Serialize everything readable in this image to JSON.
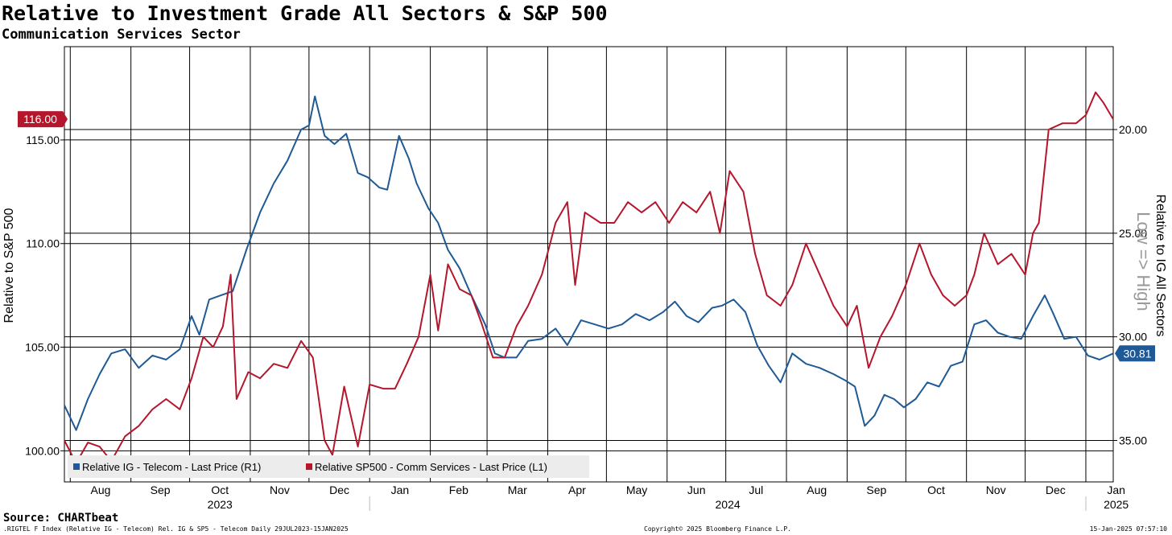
{
  "title": "Relative to Investment Grade All Sectors & S&P 500",
  "subtitle": "Communication Services Sector",
  "source": "Source: CHARTbeat",
  "footer": {
    "left": ".RIGTEL F Index (Relative IG - Telecom) Rel. IG & SP5 - Telecom  Daily 29JUL2023-15JAN2025",
    "center": "Copyright© 2025 Bloomberg Finance L.P.",
    "right": "15-Jan-2025 07:57:10"
  },
  "chart_data": {
    "type": "line",
    "x_axis": {
      "months": [
        "Aug",
        "Sep",
        "Oct",
        "Nov",
        "Dec",
        "Jan",
        "Feb",
        "Mar",
        "Apr",
        "May",
        "Jun",
        "Jul",
        "Aug",
        "Sep",
        "Oct",
        "Nov",
        "Dec",
        "Jan"
      ],
      "years": [
        "2023",
        "2024",
        "2025"
      ]
    },
    "left_axis": {
      "label": "Relative to S&P 500",
      "ticks": [
        "100.00",
        "105.00",
        "110.00",
        "115.00"
      ],
      "range": [
        98.5,
        119.5
      ]
    },
    "right_axis": {
      "label": "Relative to IG All Sectors",
      "ticks": [
        "20.00",
        "25.00",
        "30.00",
        "35.00"
      ],
      "range": [
        37.0,
        16.0
      ],
      "inverted": true,
      "annotation": "Low => High"
    },
    "grid": true,
    "legend": {
      "placement": "bottom-left"
    },
    "last_values": {
      "left": "116.00",
      "right": "30.81"
    },
    "series": [
      {
        "name": "Relative IG - Telecom - Last Price (R1)",
        "axis": "right",
        "color": "#1f5a96",
        "last_label": "30.81",
        "points": [
          [
            "2023-07-29",
            33.3
          ],
          [
            "2023-08-04",
            34.5
          ],
          [
            "2023-08-10",
            33.0
          ],
          [
            "2023-08-16",
            31.8
          ],
          [
            "2023-08-22",
            30.8
          ],
          [
            "2023-08-29",
            30.6
          ],
          [
            "2023-09-05",
            31.5
          ],
          [
            "2023-09-12",
            30.9
          ],
          [
            "2023-09-19",
            31.1
          ],
          [
            "2023-09-26",
            30.6
          ],
          [
            "2023-10-02",
            29.0
          ],
          [
            "2023-10-06",
            29.9
          ],
          [
            "2023-10-11",
            28.2
          ],
          [
            "2023-10-17",
            28.0
          ],
          [
            "2023-10-23",
            27.8
          ],
          [
            "2023-10-30",
            25.8
          ],
          [
            "2023-11-06",
            24.0
          ],
          [
            "2023-11-13",
            22.6
          ],
          [
            "2023-11-20",
            21.5
          ],
          [
            "2023-11-27",
            20.0
          ],
          [
            "2023-12-01",
            19.8
          ],
          [
            "2023-12-04",
            18.4
          ],
          [
            "2023-12-09",
            20.3
          ],
          [
            "2023-12-14",
            20.7
          ],
          [
            "2023-12-20",
            20.2
          ],
          [
            "2023-12-26",
            22.1
          ],
          [
            "2023-12-31",
            22.3
          ],
          [
            "2024-01-06",
            22.8
          ],
          [
            "2024-01-10",
            22.9
          ],
          [
            "2024-01-16",
            20.3
          ],
          [
            "2024-01-21",
            21.4
          ],
          [
            "2024-01-25",
            22.6
          ],
          [
            "2024-01-31",
            23.8
          ],
          [
            "2024-02-05",
            24.5
          ],
          [
            "2024-02-10",
            25.8
          ],
          [
            "2024-02-16",
            26.7
          ],
          [
            "2024-02-22",
            28.0
          ],
          [
            "2024-02-29",
            29.4
          ],
          [
            "2024-03-05",
            30.8
          ],
          [
            "2024-03-10",
            31.0
          ],
          [
            "2024-03-16",
            31.0
          ],
          [
            "2024-03-22",
            30.2
          ],
          [
            "2024-03-29",
            30.1
          ],
          [
            "2024-04-05",
            29.6
          ],
          [
            "2024-04-11",
            30.4
          ],
          [
            "2024-04-18",
            29.2
          ],
          [
            "2024-04-25",
            29.4
          ],
          [
            "2024-05-02",
            29.6
          ],
          [
            "2024-05-09",
            29.4
          ],
          [
            "2024-05-16",
            28.9
          ],
          [
            "2024-05-23",
            29.2
          ],
          [
            "2024-05-30",
            28.8
          ],
          [
            "2024-06-05",
            28.3
          ],
          [
            "2024-06-11",
            29.0
          ],
          [
            "2024-06-17",
            29.3
          ],
          [
            "2024-06-24",
            28.6
          ],
          [
            "2024-06-29",
            28.5
          ],
          [
            "2024-07-05",
            28.2
          ],
          [
            "2024-07-11",
            28.8
          ],
          [
            "2024-07-17",
            30.4
          ],
          [
            "2024-07-23",
            31.4
          ],
          [
            "2024-07-29",
            32.2
          ],
          [
            "2024-08-04",
            30.8
          ],
          [
            "2024-08-11",
            31.3
          ],
          [
            "2024-08-18",
            31.5
          ],
          [
            "2024-08-25",
            31.8
          ],
          [
            "2024-08-31",
            32.1
          ],
          [
            "2024-09-05",
            32.4
          ],
          [
            "2024-09-10",
            34.3
          ],
          [
            "2024-09-15",
            33.8
          ],
          [
            "2024-09-20",
            32.8
          ],
          [
            "2024-09-25",
            33.0
          ],
          [
            "2024-09-30",
            33.4
          ],
          [
            "2024-10-06",
            33.0
          ],
          [
            "2024-10-12",
            32.2
          ],
          [
            "2024-10-18",
            32.4
          ],
          [
            "2024-10-24",
            31.4
          ],
          [
            "2024-10-30",
            31.2
          ],
          [
            "2024-11-05",
            29.4
          ],
          [
            "2024-11-11",
            29.2
          ],
          [
            "2024-11-17",
            29.8
          ],
          [
            "2024-11-23",
            30.0
          ],
          [
            "2024-11-29",
            30.1
          ],
          [
            "2024-12-05",
            29.0
          ],
          [
            "2024-12-11",
            28.0
          ],
          [
            "2024-12-15",
            28.8
          ],
          [
            "2024-12-21",
            30.1
          ],
          [
            "2024-12-27",
            30.0
          ],
          [
            "2025-01-02",
            30.9
          ],
          [
            "2025-01-08",
            31.1
          ],
          [
            "2025-01-15",
            30.8
          ]
        ]
      },
      {
        "name": "Relative SP500 - Comm Services - Last Price (L1)",
        "axis": "left",
        "color": "#b5162b",
        "last_label": "116.00",
        "points": [
          [
            "2023-07-29",
            100.5
          ],
          [
            "2023-08-04",
            99.4
          ],
          [
            "2023-08-10",
            100.4
          ],
          [
            "2023-08-16",
            100.2
          ],
          [
            "2023-08-22",
            99.5
          ],
          [
            "2023-08-29",
            100.7
          ],
          [
            "2023-09-05",
            101.2
          ],
          [
            "2023-09-12",
            102.0
          ],
          [
            "2023-09-19",
            102.5
          ],
          [
            "2023-09-26",
            102.0
          ],
          [
            "2023-10-02",
            103.5
          ],
          [
            "2023-10-08",
            105.5
          ],
          [
            "2023-10-13",
            105.0
          ],
          [
            "2023-10-18",
            106.0
          ],
          [
            "2023-10-22",
            108.5
          ],
          [
            "2023-10-25",
            102.5
          ],
          [
            "2023-10-31",
            103.8
          ],
          [
            "2023-11-06",
            103.5
          ],
          [
            "2023-11-13",
            104.2
          ],
          [
            "2023-11-20",
            104.0
          ],
          [
            "2023-11-27",
            105.3
          ],
          [
            "2023-12-03",
            104.5
          ],
          [
            "2023-12-09",
            100.5
          ],
          [
            "2023-12-13",
            99.8
          ],
          [
            "2023-12-19",
            103.1
          ],
          [
            "2023-12-26",
            100.2
          ],
          [
            "2024-01-01",
            103.2
          ],
          [
            "2024-01-08",
            103.0
          ],
          [
            "2024-01-14",
            103.0
          ],
          [
            "2024-01-20",
            104.2
          ],
          [
            "2024-01-26",
            105.5
          ],
          [
            "2024-02-01",
            108.5
          ],
          [
            "2024-02-05",
            105.8
          ],
          [
            "2024-02-10",
            109.0
          ],
          [
            "2024-02-16",
            107.8
          ],
          [
            "2024-02-22",
            107.5
          ],
          [
            "2024-02-27",
            106.2
          ],
          [
            "2024-03-04",
            104.5
          ],
          [
            "2024-03-10",
            104.5
          ],
          [
            "2024-03-16",
            106.0
          ],
          [
            "2024-03-22",
            107.0
          ],
          [
            "2024-03-29",
            108.5
          ],
          [
            "2024-04-05",
            111.0
          ],
          [
            "2024-04-11",
            112.0
          ],
          [
            "2024-04-15",
            108.0
          ],
          [
            "2024-04-20",
            111.5
          ],
          [
            "2024-04-28",
            111.0
          ],
          [
            "2024-05-05",
            111.0
          ],
          [
            "2024-05-12",
            112.0
          ],
          [
            "2024-05-19",
            111.5
          ],
          [
            "2024-05-26",
            112.0
          ],
          [
            "2024-06-02",
            111.0
          ],
          [
            "2024-06-09",
            112.0
          ],
          [
            "2024-06-16",
            111.5
          ],
          [
            "2024-06-23",
            112.5
          ],
          [
            "2024-06-28",
            110.5
          ],
          [
            "2024-07-03",
            113.5
          ],
          [
            "2024-07-10",
            112.5
          ],
          [
            "2024-07-16",
            109.5
          ],
          [
            "2024-07-22",
            107.5
          ],
          [
            "2024-07-29",
            107.0
          ],
          [
            "2024-08-04",
            108.0
          ],
          [
            "2024-08-11",
            110.0
          ],
          [
            "2024-08-18",
            108.5
          ],
          [
            "2024-08-25",
            107.0
          ],
          [
            "2024-09-01",
            106.0
          ],
          [
            "2024-09-06",
            107.0
          ],
          [
            "2024-09-12",
            104.0
          ],
          [
            "2024-09-18",
            105.5
          ],
          [
            "2024-09-24",
            106.5
          ],
          [
            "2024-10-01",
            108.0
          ],
          [
            "2024-10-08",
            110.0
          ],
          [
            "2024-10-14",
            108.5
          ],
          [
            "2024-10-20",
            107.5
          ],
          [
            "2024-10-26",
            107.0
          ],
          [
            "2024-11-01",
            107.5
          ],
          [
            "2024-11-05",
            108.5
          ],
          [
            "2024-11-10",
            110.5
          ],
          [
            "2024-11-17",
            109.0
          ],
          [
            "2024-11-24",
            109.5
          ],
          [
            "2024-12-01",
            108.5
          ],
          [
            "2024-12-05",
            110.5
          ],
          [
            "2024-12-08",
            111.0
          ],
          [
            "2024-12-13",
            115.5
          ],
          [
            "2024-12-20",
            115.8
          ],
          [
            "2024-12-27",
            115.8
          ],
          [
            "2025-01-01",
            116.2
          ],
          [
            "2025-01-06",
            117.3
          ],
          [
            "2025-01-10",
            116.8
          ],
          [
            "2025-01-15",
            116.0
          ]
        ]
      }
    ]
  }
}
